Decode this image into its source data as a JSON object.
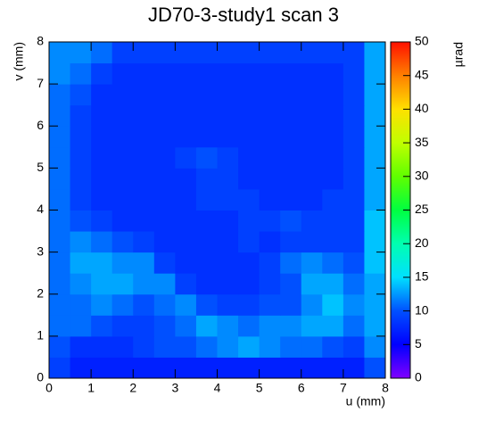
{
  "chart_data": {
    "type": "heatmap",
    "title": "JD70-3-study1 scan 3",
    "x_label": "u (mm)",
    "y_label": "v (mm)",
    "colorbar_label": "µrad",
    "xlim": [
      0,
      8
    ],
    "ylim": [
      0,
      8
    ],
    "zlim": [
      0,
      50
    ],
    "xticks": [
      0,
      1,
      2,
      3,
      4,
      5,
      6,
      7,
      8
    ],
    "yticks": [
      0,
      1,
      2,
      3,
      4,
      5,
      6,
      7,
      8
    ],
    "zticks": [
      0,
      5,
      10,
      15,
      20,
      25,
      30,
      35,
      40,
      45,
      50
    ],
    "x_edges": [
      0,
      0.5,
      1,
      1.5,
      2,
      2.5,
      3,
      3.5,
      4,
      4.5,
      5,
      5.5,
      6,
      6.5,
      7,
      7.5,
      8
    ],
    "y_edges": [
      0,
      0.5,
      1,
      1.5,
      2,
      2.5,
      3,
      3.5,
      4,
      4.5,
      5,
      5.5,
      6,
      6.5,
      7,
      7.5,
      8
    ],
    "colormap": [
      "#8000ff",
      "#0000ff",
      "#0050ff",
      "#00e0ff",
      "#00ffb0",
      "#00ff40",
      "#60ff00",
      "#c0ff00",
      "#ffe000",
      "#ff8000",
      "#ff1000"
    ],
    "z": [
      [
        9,
        7,
        7,
        7,
        7,
        7,
        7,
        7,
        7,
        7,
        7,
        7,
        7,
        7,
        7,
        10
      ],
      [
        10,
        8,
        8,
        8,
        9,
        10,
        10,
        11,
        12,
        13,
        12,
        11,
        11,
        10,
        9,
        12
      ],
      [
        11,
        11,
        10,
        9,
        9,
        10,
        11,
        13,
        12,
        11,
        12,
        12,
        13,
        13,
        11,
        13
      ],
      [
        11,
        11,
        12,
        11,
        10,
        11,
        12,
        10,
        9,
        9,
        10,
        10,
        12,
        14,
        12,
        13
      ],
      [
        11,
        12,
        13,
        13,
        12,
        12,
        9,
        8,
        8,
        8,
        9,
        10,
        13,
        13,
        11,
        13
      ],
      [
        11,
        13,
        13,
        12,
        12,
        9,
        8,
        8,
        8,
        8,
        9,
        11,
        12,
        11,
        10,
        14
      ],
      [
        11,
        12,
        11,
        10,
        9,
        8,
        8,
        8,
        8,
        9,
        8,
        9,
        9,
        9,
        9,
        14
      ],
      [
        11,
        10,
        9,
        8,
        8,
        8,
        8,
        8,
        8,
        9,
        9,
        10,
        9,
        9,
        9,
        14
      ],
      [
        11,
        9,
        8,
        8,
        8,
        8,
        8,
        9,
        9,
        9,
        8,
        8,
        8,
        9,
        9,
        13
      ],
      [
        11,
        9,
        8,
        8,
        8,
        8,
        8,
        9,
        9,
        8,
        8,
        8,
        8,
        8,
        9,
        13
      ],
      [
        11,
        9,
        8,
        8,
        8,
        8,
        9,
        10,
        9,
        8,
        8,
        8,
        8,
        8,
        9,
        13
      ],
      [
        11,
        9,
        8,
        8,
        8,
        8,
        8,
        8,
        8,
        8,
        8,
        8,
        8,
        8,
        9,
        13
      ],
      [
        11,
        9,
        8,
        8,
        8,
        8,
        8,
        8,
        8,
        8,
        8,
        8,
        8,
        8,
        9,
        13
      ],
      [
        11,
        10,
        8,
        8,
        8,
        8,
        8,
        8,
        8,
        8,
        8,
        8,
        8,
        8,
        9,
        13
      ],
      [
        12,
        11,
        9,
        8,
        8,
        8,
        8,
        8,
        8,
        8,
        8,
        8,
        8,
        8,
        9,
        13
      ],
      [
        12,
        12,
        11,
        9,
        9,
        9,
        9,
        9,
        9,
        9,
        9,
        9,
        9,
        9,
        9,
        13
      ]
    ]
  }
}
